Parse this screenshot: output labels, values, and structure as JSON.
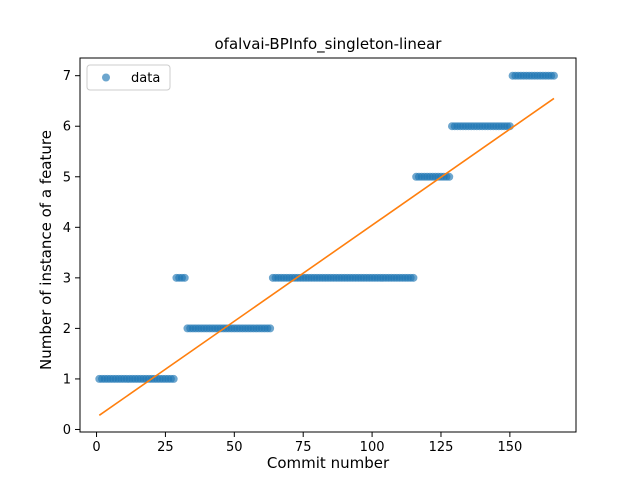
{
  "chart_data": {
    "type": "scatter",
    "title": "ofalvai-BPInfo_singleton-linear",
    "xlabel": "Commit number",
    "ylabel": "Number of instance of a feature",
    "xlim": [
      -6,
      174
    ],
    "ylim": [
      -0.05,
      7.35
    ],
    "xticks": [
      0,
      25,
      50,
      75,
      100,
      125,
      150
    ],
    "yticks": [
      0,
      1,
      2,
      3,
      4,
      5,
      6,
      7
    ],
    "grid": false,
    "legend": {
      "placement": "top-left",
      "entries": [
        "data"
      ]
    },
    "colors": {
      "points": "#1f77b4",
      "fit_line": "#ff7f0e"
    },
    "series": [
      {
        "name": "data",
        "kind": "points",
        "segments": [
          {
            "x_start": 1,
            "x_end": 28,
            "y": 1
          },
          {
            "x_start": 29,
            "x_end": 32,
            "y": 3
          },
          {
            "x_start": 33,
            "x_end": 63,
            "y": 2
          },
          {
            "x_start": 64,
            "x_end": 115,
            "y": 3
          },
          {
            "x_start": 116,
            "x_end": 128,
            "y": 5
          },
          {
            "x_start": 129,
            "x_end": 150,
            "y": 6
          },
          {
            "x_start": 151,
            "x_end": 166,
            "y": 7
          }
        ]
      },
      {
        "kind": "line",
        "x": [
          1,
          166
        ],
        "y": [
          0.28,
          6.55
        ]
      }
    ]
  }
}
